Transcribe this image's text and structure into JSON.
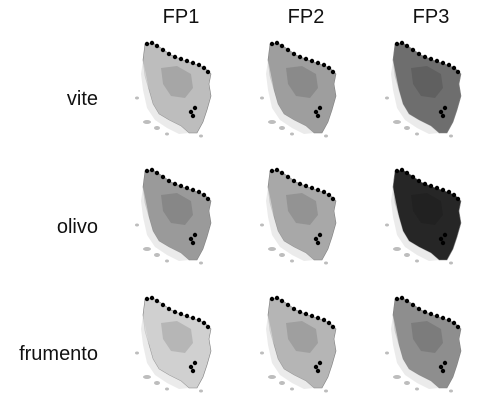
{
  "columns": [
    "FP1",
    "FP2",
    "FP3"
  ],
  "rows": [
    "vite",
    "olivo",
    "frumento"
  ],
  "map_fill": {
    "vite": {
      "FP1": "#bdbdbd",
      "FP2": "#9e9e9e",
      "FP3": "#6e6e6e"
    },
    "olivo": {
      "FP1": "#9a9a9a",
      "FP2": "#a8a8a8",
      "FP3": "#262626"
    },
    "frumento": {
      "FP1": "#d0d0d0",
      "FP2": "#b5b5b5",
      "FP3": "#8e8e8e"
    }
  },
  "map_light_fill": "#e2e2e2",
  "outline_color": "#000000"
}
